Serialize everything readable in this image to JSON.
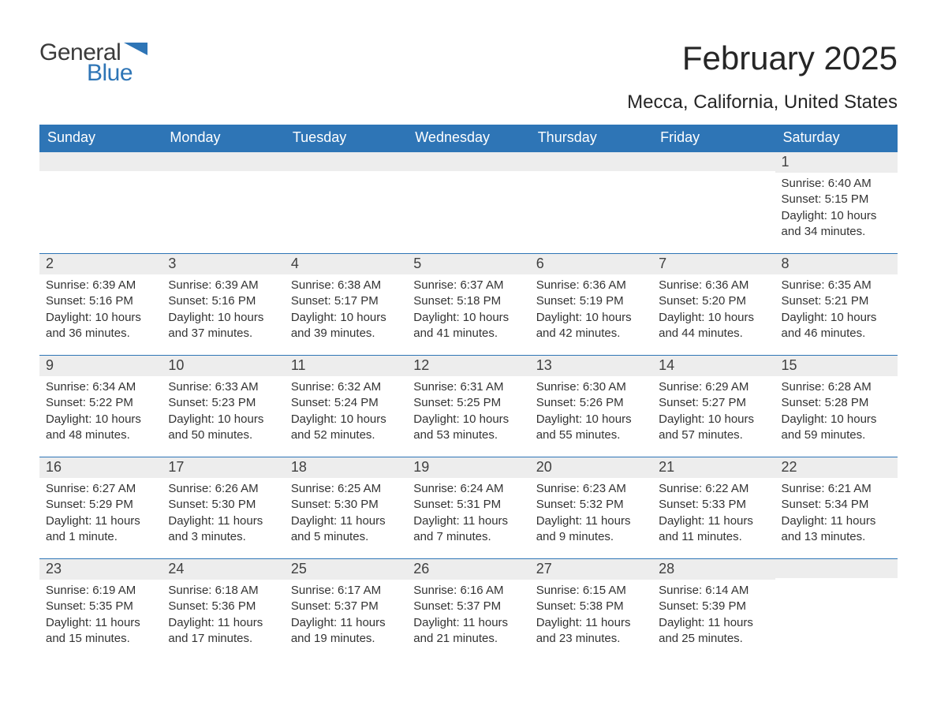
{
  "brand": {
    "word1": "General",
    "word2": "Blue",
    "color": "#2e75b6"
  },
  "title": "February 2025",
  "location": "Mecca, California, United States",
  "weekdays": [
    "Sunday",
    "Monday",
    "Tuesday",
    "Wednesday",
    "Thursday",
    "Friday",
    "Saturday"
  ],
  "colors": {
    "header_bg": "#2e75b6",
    "header_text": "#ffffff",
    "daynum_bg": "#ededed",
    "text": "#333333",
    "divider": "#2e75b6",
    "background": "#ffffff"
  },
  "typography": {
    "title_fontsize": 42,
    "location_fontsize": 24,
    "weekday_fontsize": 18,
    "daynum_fontsize": 18,
    "body_fontsize": 15
  },
  "layout": {
    "columns": 7,
    "rows": 5,
    "start_weekday_index": 6
  },
  "weeks": [
    [
      {
        "n": "",
        "sunrise": "",
        "sunset": "",
        "daylight": ""
      },
      {
        "n": "",
        "sunrise": "",
        "sunset": "",
        "daylight": ""
      },
      {
        "n": "",
        "sunrise": "",
        "sunset": "",
        "daylight": ""
      },
      {
        "n": "",
        "sunrise": "",
        "sunset": "",
        "daylight": ""
      },
      {
        "n": "",
        "sunrise": "",
        "sunset": "",
        "daylight": ""
      },
      {
        "n": "",
        "sunrise": "",
        "sunset": "",
        "daylight": ""
      },
      {
        "n": "1",
        "sunrise": "Sunrise: 6:40 AM",
        "sunset": "Sunset: 5:15 PM",
        "daylight": "Daylight: 10 hours and 34 minutes."
      }
    ],
    [
      {
        "n": "2",
        "sunrise": "Sunrise: 6:39 AM",
        "sunset": "Sunset: 5:16 PM",
        "daylight": "Daylight: 10 hours and 36 minutes."
      },
      {
        "n": "3",
        "sunrise": "Sunrise: 6:39 AM",
        "sunset": "Sunset: 5:16 PM",
        "daylight": "Daylight: 10 hours and 37 minutes."
      },
      {
        "n": "4",
        "sunrise": "Sunrise: 6:38 AM",
        "sunset": "Sunset: 5:17 PM",
        "daylight": "Daylight: 10 hours and 39 minutes."
      },
      {
        "n": "5",
        "sunrise": "Sunrise: 6:37 AM",
        "sunset": "Sunset: 5:18 PM",
        "daylight": "Daylight: 10 hours and 41 minutes."
      },
      {
        "n": "6",
        "sunrise": "Sunrise: 6:36 AM",
        "sunset": "Sunset: 5:19 PM",
        "daylight": "Daylight: 10 hours and 42 minutes."
      },
      {
        "n": "7",
        "sunrise": "Sunrise: 6:36 AM",
        "sunset": "Sunset: 5:20 PM",
        "daylight": "Daylight: 10 hours and 44 minutes."
      },
      {
        "n": "8",
        "sunrise": "Sunrise: 6:35 AM",
        "sunset": "Sunset: 5:21 PM",
        "daylight": "Daylight: 10 hours and 46 minutes."
      }
    ],
    [
      {
        "n": "9",
        "sunrise": "Sunrise: 6:34 AM",
        "sunset": "Sunset: 5:22 PM",
        "daylight": "Daylight: 10 hours and 48 minutes."
      },
      {
        "n": "10",
        "sunrise": "Sunrise: 6:33 AM",
        "sunset": "Sunset: 5:23 PM",
        "daylight": "Daylight: 10 hours and 50 minutes."
      },
      {
        "n": "11",
        "sunrise": "Sunrise: 6:32 AM",
        "sunset": "Sunset: 5:24 PM",
        "daylight": "Daylight: 10 hours and 52 minutes."
      },
      {
        "n": "12",
        "sunrise": "Sunrise: 6:31 AM",
        "sunset": "Sunset: 5:25 PM",
        "daylight": "Daylight: 10 hours and 53 minutes."
      },
      {
        "n": "13",
        "sunrise": "Sunrise: 6:30 AM",
        "sunset": "Sunset: 5:26 PM",
        "daylight": "Daylight: 10 hours and 55 minutes."
      },
      {
        "n": "14",
        "sunrise": "Sunrise: 6:29 AM",
        "sunset": "Sunset: 5:27 PM",
        "daylight": "Daylight: 10 hours and 57 minutes."
      },
      {
        "n": "15",
        "sunrise": "Sunrise: 6:28 AM",
        "sunset": "Sunset: 5:28 PM",
        "daylight": "Daylight: 10 hours and 59 minutes."
      }
    ],
    [
      {
        "n": "16",
        "sunrise": "Sunrise: 6:27 AM",
        "sunset": "Sunset: 5:29 PM",
        "daylight": "Daylight: 11 hours and 1 minute."
      },
      {
        "n": "17",
        "sunrise": "Sunrise: 6:26 AM",
        "sunset": "Sunset: 5:30 PM",
        "daylight": "Daylight: 11 hours and 3 minutes."
      },
      {
        "n": "18",
        "sunrise": "Sunrise: 6:25 AM",
        "sunset": "Sunset: 5:30 PM",
        "daylight": "Daylight: 11 hours and 5 minutes."
      },
      {
        "n": "19",
        "sunrise": "Sunrise: 6:24 AM",
        "sunset": "Sunset: 5:31 PM",
        "daylight": "Daylight: 11 hours and 7 minutes."
      },
      {
        "n": "20",
        "sunrise": "Sunrise: 6:23 AM",
        "sunset": "Sunset: 5:32 PM",
        "daylight": "Daylight: 11 hours and 9 minutes."
      },
      {
        "n": "21",
        "sunrise": "Sunrise: 6:22 AM",
        "sunset": "Sunset: 5:33 PM",
        "daylight": "Daylight: 11 hours and 11 minutes."
      },
      {
        "n": "22",
        "sunrise": "Sunrise: 6:21 AM",
        "sunset": "Sunset: 5:34 PM",
        "daylight": "Daylight: 11 hours and 13 minutes."
      }
    ],
    [
      {
        "n": "23",
        "sunrise": "Sunrise: 6:19 AM",
        "sunset": "Sunset: 5:35 PM",
        "daylight": "Daylight: 11 hours and 15 minutes."
      },
      {
        "n": "24",
        "sunrise": "Sunrise: 6:18 AM",
        "sunset": "Sunset: 5:36 PM",
        "daylight": "Daylight: 11 hours and 17 minutes."
      },
      {
        "n": "25",
        "sunrise": "Sunrise: 6:17 AM",
        "sunset": "Sunset: 5:37 PM",
        "daylight": "Daylight: 11 hours and 19 minutes."
      },
      {
        "n": "26",
        "sunrise": "Sunrise: 6:16 AM",
        "sunset": "Sunset: 5:37 PM",
        "daylight": "Daylight: 11 hours and 21 minutes."
      },
      {
        "n": "27",
        "sunrise": "Sunrise: 6:15 AM",
        "sunset": "Sunset: 5:38 PM",
        "daylight": "Daylight: 11 hours and 23 minutes."
      },
      {
        "n": "28",
        "sunrise": "Sunrise: 6:14 AM",
        "sunset": "Sunset: 5:39 PM",
        "daylight": "Daylight: 11 hours and 25 minutes."
      },
      {
        "n": "",
        "sunrise": "",
        "sunset": "",
        "daylight": ""
      }
    ]
  ]
}
